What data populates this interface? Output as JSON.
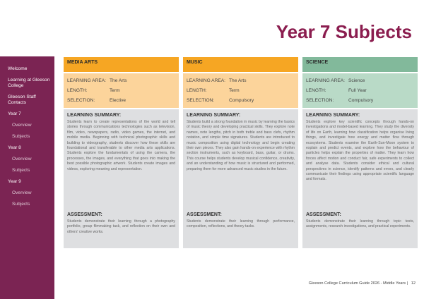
{
  "title": "Year 7 Subjects",
  "sidebar": {
    "items": [
      "Welcome",
      "Learning at Gleeson College",
      "Gleeson Staff Contacts"
    ],
    "years": [
      {
        "label": "Year 7",
        "subs": [
          "Overview",
          "Subjects"
        ]
      },
      {
        "label": "Year 8",
        "subs": [
          "Overview",
          "Subjects"
        ]
      },
      {
        "label": "Year 9",
        "subs": [
          "Overview",
          "Subjects"
        ]
      }
    ]
  },
  "labels": {
    "area": "LEARNING AREA:",
    "length": "LENGTH:",
    "selection": "SELECTION:",
    "summary": "LEARNING SUMMARY:",
    "assessment": "ASSESSMENT:"
  },
  "colors": {
    "brand": "#7b2453",
    "arts_header": "#f6a623",
    "arts_info": "#fcd49b",
    "science_header": "#82b99b",
    "science_info": "#b9dac7",
    "panel": "#dedfe1"
  },
  "subjects": [
    {
      "name": "MEDIA ARTS",
      "area": "The Arts",
      "length": "Term",
      "selection": "Elective",
      "summary": "Students learn to create representations of the world and tell stories through communications technologies such as television, film, video, newspapers, radio, video games, the internet, and mobile media. Beginning with technical photographic skills and building to videography, students discover how these skills are foundational and transferable to other media arts applications. Students explore the fundamentals of using the camera, the processes, the images, and everything that goes into making the best possible photographic artwork. Students create images and videos, exploring meaning and representation.",
      "assessment": "Students demonstrate their learning through a photography portfolio, group filmmaking task, and reflection on their own and others' creative works."
    },
    {
      "name": "MUSIC",
      "area": "The Arts",
      "length": "Term",
      "selection": "Compulsory",
      "summary": "Students build a strong foundation in music by learning the basics of music theory and developing practical skills. They explore note names, note lengths, pitch in both treble and bass clefs, rhythm notation, and simple time signatures. Students are introduced to music composition using digital technology and begin creating their own pieces. They also gain hands-on experience with rhythm section instruments, such as keyboard, bass, guitar, or drums. This course helps students develop musical confidence, creativity, and an understanding of how music is structured and performed, preparing them for more advanced music studies in the future.",
      "assessment": "Students demonstrate their learning through performance, composition, reflections, and theory tasks."
    },
    {
      "name": "SCIENCE",
      "area": "Science",
      "length": "Full Year",
      "selection": "Compulsory",
      "summary": "Students explore key scientific concepts through hands-on investigations and model-based learning. They study the diversity of life on Earth, learning how classification helps organise living things, and investigate how energy and matter flow through ecosystems. Students examine the Earth-Sun-Moon system to explain and predict events, and explore how the behaviour of particles helps explain the properties of matter. They learn how forces affect motion and conduct fair, safe experiments to collect and analyse data. Students consider ethical and cultural perspectives in science, identify patterns and errors, and clearly communicate their findings using appropriate scientific language and formats.",
      "assessment": "Students demonstrate their learning through topic tests, assignments, research investigations, and practical experiments."
    }
  ],
  "footer": {
    "text": "Gleeson College Curriculum Guide 2026 - Middle Years  |",
    "page": "12"
  }
}
